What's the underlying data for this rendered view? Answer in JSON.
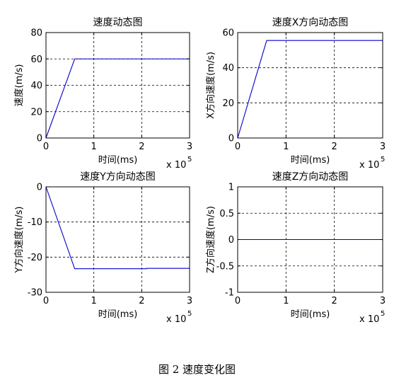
{
  "caption": "图 2 速度变化图",
  "chart_data": [
    {
      "type": "line",
      "title": "速度动态图",
      "xlabel": "时间(ms)",
      "ylabel": "速度(m/s)",
      "x_multiplier": "x 10",
      "x_exponent": "5",
      "xlim": [
        0,
        3
      ],
      "ylim": [
        0,
        80
      ],
      "xticks": [
        0,
        1,
        2,
        3
      ],
      "yticks": [
        0,
        20,
        40,
        60,
        80
      ],
      "grid": true,
      "series": [
        {
          "x": [
            0,
            0.6,
            3
          ],
          "y": [
            0,
            60,
            60
          ],
          "color": "#0000cc"
        }
      ]
    },
    {
      "type": "line",
      "title": "速度X方向动态图",
      "xlabel": "时间(ms)",
      "ylabel": "X方向速度(m/s)",
      "x_multiplier": "x 10",
      "x_exponent": "5",
      "xlim": [
        0,
        3
      ],
      "ylim": [
        0,
        60
      ],
      "xticks": [
        0,
        1,
        2,
        3
      ],
      "yticks": [
        0,
        20,
        40,
        60
      ],
      "grid": true,
      "series": [
        {
          "x": [
            0,
            0.6,
            3
          ],
          "y": [
            0,
            55.5,
            55.5
          ],
          "color": "#0000cc"
        }
      ]
    },
    {
      "type": "line",
      "title": "速度Y方向动态图",
      "xlabel": "时间(ms)",
      "ylabel": "Y方向速度(m/s)",
      "x_multiplier": "x 10",
      "x_exponent": "5",
      "xlim": [
        0,
        3
      ],
      "ylim": [
        -30,
        0
      ],
      "xticks": [
        0,
        1,
        2,
        3
      ],
      "yticks": [
        -30,
        -20,
        -10,
        0
      ],
      "grid": true,
      "series": [
        {
          "x": [
            0,
            0.6,
            2.1,
            2.1,
            3
          ],
          "y": [
            0,
            -23.3,
            -23.3,
            -23.2,
            -23.2
          ],
          "color": "#0000cc"
        }
      ]
    },
    {
      "type": "line",
      "title": "速度Z方向动态图",
      "xlabel": "时间(ms)",
      "ylabel": "Z方向速度(m/s)",
      "x_multiplier": "x 10",
      "x_exponent": "5",
      "xlim": [
        0,
        3
      ],
      "ylim": [
        -1,
        1
      ],
      "xticks": [
        0,
        1,
        2,
        3
      ],
      "yticks": [
        -1,
        -0.5,
        0,
        0.5,
        1
      ],
      "grid": true,
      "series": [
        {
          "x": [
            0,
            3
          ],
          "y": [
            0,
            0
          ],
          "color": "#0000cc"
        }
      ]
    }
  ]
}
